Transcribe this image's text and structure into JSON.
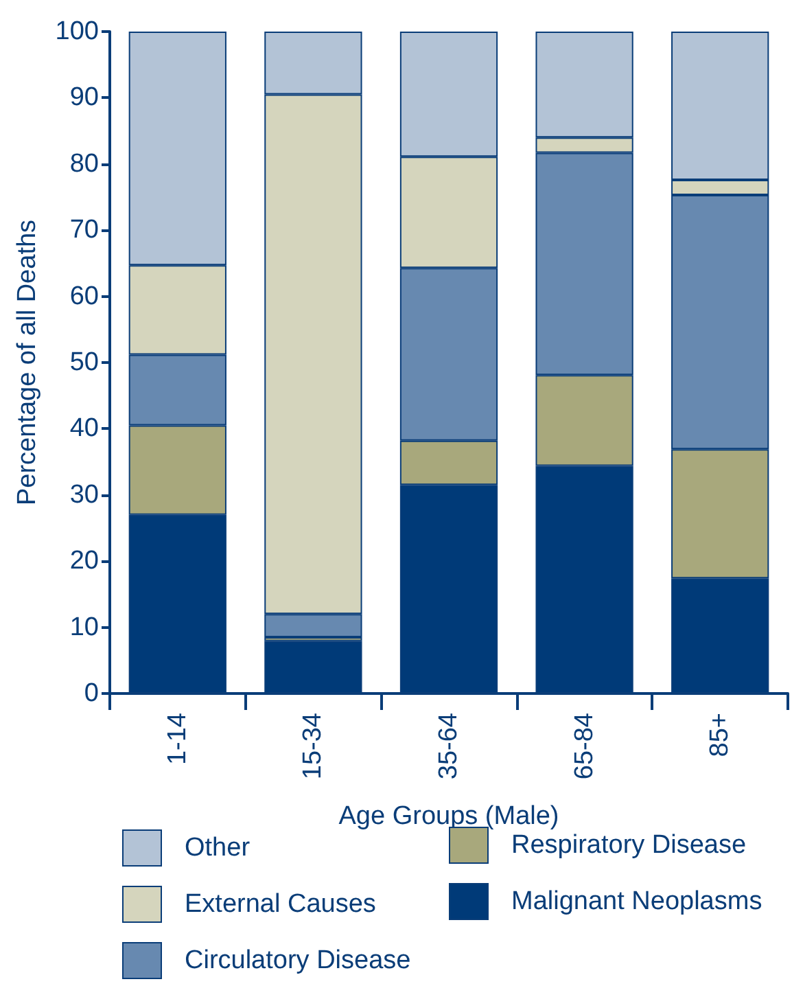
{
  "chart_data": {
    "type": "bar",
    "stacked": true,
    "xlabel": "Age Groups (Male)",
    "ylabel": "Percentage of all Deaths",
    "categories": [
      "1-14",
      "15-34",
      "35-64",
      "65-84",
      "85+"
    ],
    "series": [
      {
        "name": "Malignant Neoplasms",
        "color": "#003a78",
        "values": [
          27.0,
          7.9,
          31.5,
          34.4,
          17.4
        ]
      },
      {
        "name": "Respiratory Disease",
        "color": "#a8a87c",
        "values": [
          13.5,
          0.6,
          6.7,
          13.7,
          19.5
        ]
      },
      {
        "name": "Circulatory Disease",
        "color": "#6789b0",
        "values": [
          10.7,
          3.5,
          26.1,
          33.6,
          38.4
        ]
      },
      {
        "name": "External Causes",
        "color": "#d5d5bd",
        "values": [
          13.5,
          78.5,
          16.8,
          2.3,
          2.3
        ]
      },
      {
        "name": "Other",
        "color": "#b3c3d6",
        "values": [
          35.3,
          9.5,
          18.9,
          16.0,
          22.4
        ]
      }
    ],
    "ylim": [
      0,
      100
    ],
    "yticks": [
      0,
      10,
      20,
      30,
      40,
      50,
      60,
      70,
      80,
      90,
      100
    ],
    "grid": false,
    "legend": "bottom"
  }
}
